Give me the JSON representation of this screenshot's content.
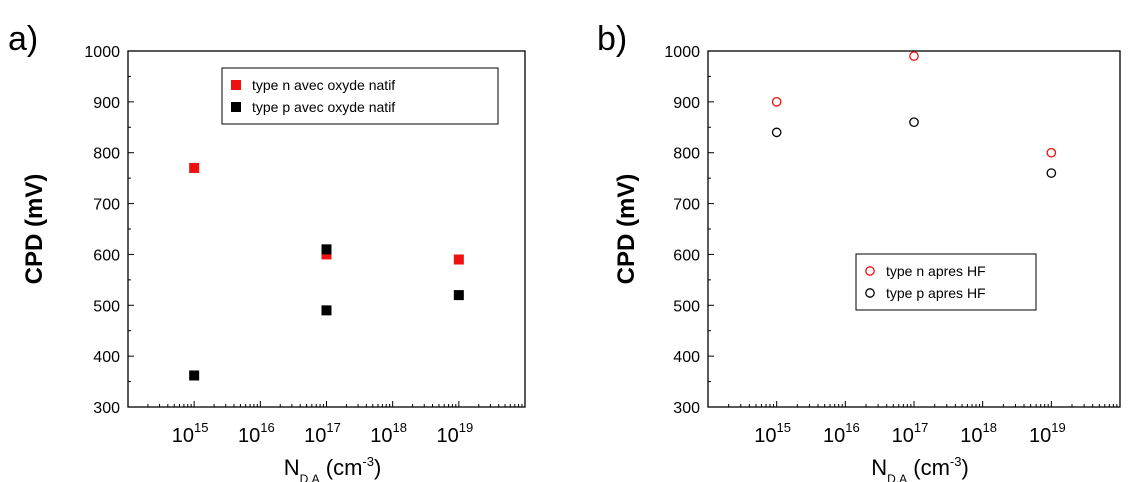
{
  "chart_data": [
    {
      "type": "scatter",
      "panel_label": "a)",
      "xlabel": {
        "base": "N",
        "sub": "D,A",
        "unit": " (cm",
        "sup": "-3",
        "close": ")"
      },
      "ylabel": "CPD (mV)",
      "x_scale": "log",
      "xlim": [
        100000000000000.0,
        1e+20
      ],
      "ylim": [
        300,
        1000
      ],
      "yticks": [
        300,
        400,
        500,
        600,
        700,
        800,
        900,
        1000
      ],
      "xticks": [
        {
          "base": "10",
          "exp": "15",
          "value": 1000000000000000.0
        },
        {
          "base": "10",
          "exp": "16",
          "value": 1e+16
        },
        {
          "base": "10",
          "exp": "17",
          "value": 1e+17
        },
        {
          "base": "10",
          "exp": "18",
          "value": 1e+18
        },
        {
          "base": "10",
          "exp": "19",
          "value": 1e+19
        }
      ],
      "legend_position": "top-right",
      "series": [
        {
          "name": "type n avec oxyde natif",
          "marker": "filled-square",
          "color": "#ee1111",
          "x": [
            1000000000000000.0,
            1e+17,
            1e+19
          ],
          "y": [
            770,
            600,
            590
          ]
        },
        {
          "name": "type p avec oxyde natif",
          "marker": "filled-square",
          "color": "#000000",
          "x": [
            1000000000000000.0,
            1e+17,
            1e+17,
            1e+19
          ],
          "y": [
            362,
            610,
            490,
            520
          ]
        }
      ]
    },
    {
      "type": "scatter",
      "panel_label": "b)",
      "xlabel": {
        "base": "N",
        "sub": "D,A",
        "unit": " (cm",
        "sup": "-3",
        "close": ")"
      },
      "ylabel": "CPD (mV)",
      "x_scale": "log",
      "xlim": [
        100000000000000.0,
        1e+20
      ],
      "ylim": [
        300,
        1000
      ],
      "yticks": [
        300,
        400,
        500,
        600,
        700,
        800,
        900,
        1000
      ],
      "xticks": [
        {
          "base": "10",
          "exp": "15",
          "value": 1000000000000000.0
        },
        {
          "base": "10",
          "exp": "16",
          "value": 1e+16
        },
        {
          "base": "10",
          "exp": "17",
          "value": 1e+17
        },
        {
          "base": "10",
          "exp": "18",
          "value": 1e+18
        },
        {
          "base": "10",
          "exp": "19",
          "value": 1e+19
        }
      ],
      "legend_position": "center-right",
      "series": [
        {
          "name": "type n apres HF",
          "marker": "open-circle",
          "color": "#ee1111",
          "x": [
            1000000000000000.0,
            1e+17,
            1e+19
          ],
          "y": [
            900,
            990,
            800
          ]
        },
        {
          "name": "type p apres HF",
          "marker": "open-circle",
          "color": "#000000",
          "x": [
            1000000000000000.0,
            1e+17,
            1e+19
          ],
          "y": [
            840,
            860,
            760
          ]
        }
      ]
    }
  ]
}
